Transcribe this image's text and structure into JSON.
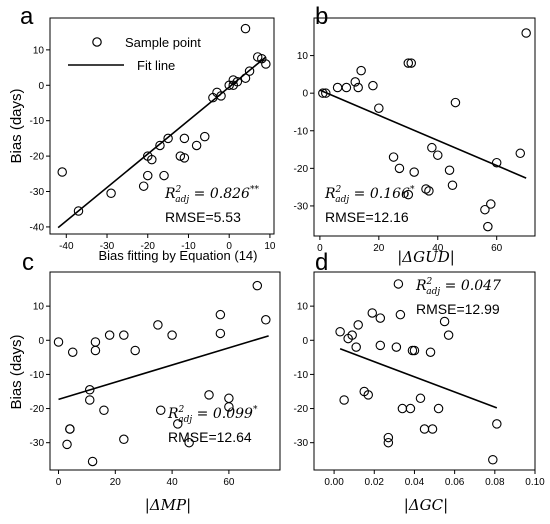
{
  "chart_data": [
    {
      "panel": "a",
      "type": "scatter",
      "xlabel": "Bias fitting by Equation (14)",
      "ylabel": "Bias (days)",
      "xlim": [
        -44,
        11
      ],
      "ylim": [
        -42,
        19
      ],
      "xticks": [
        -40,
        -30,
        -20,
        -10,
        0,
        10
      ],
      "yticks": [
        -40,
        -30,
        -20,
        -10,
        0,
        10
      ],
      "legend": {
        "marker_label": "Sample point",
        "line_label": "Fit line",
        "placement": "top-left"
      },
      "r2_value": "0.826",
      "r2_sig": "**",
      "rmse": "RMSE=5.53",
      "fit": {
        "x1": -42,
        "y1": -40.2,
        "x2": 9,
        "y2": 8
      },
      "x": [
        -41,
        -37,
        -29,
        -21,
        -20,
        -20,
        -19,
        -17,
        -16,
        -15,
        -12,
        -11,
        -11,
        -8,
        -6,
        -4,
        -3,
        -2,
        0,
        1,
        1,
        2,
        4,
        5,
        7,
        8,
        9,
        4
      ],
      "y": [
        -24.5,
        -35.5,
        -30.5,
        -28.5,
        -20,
        -25.5,
        -21,
        -17,
        -25.5,
        -15,
        -20,
        -15,
        -20.5,
        -17,
        -14.5,
        -3.5,
        -2,
        -3,
        0,
        1.5,
        0,
        1,
        2,
        4,
        8,
        7.5,
        6,
        16
      ]
    },
    {
      "panel": "b",
      "type": "scatter",
      "xlabel": "|ΔGUD|",
      "ylabel": "",
      "xlim": [
        -2,
        73
      ],
      "ylim": [
        -38,
        20
      ],
      "xticks": [
        0,
        20,
        40,
        60
      ],
      "yticks": [
        -30,
        -20,
        -10,
        0,
        10
      ],
      "r2_value": "0.166",
      "r2_sig": "*",
      "rmse": "RMSE=12.16",
      "fit": {
        "x1": 0,
        "y1": 0.8,
        "x2": 70,
        "y2": -22.6
      },
      "x": [
        1,
        2,
        6,
        9,
        12,
        13,
        14,
        18,
        20,
        30,
        31,
        32,
        25,
        27,
        30,
        36,
        37,
        38,
        40,
        44,
        45,
        46,
        56,
        57,
        58,
        60,
        68,
        70
      ],
      "y": [
        0,
        0,
        1.5,
        1.5,
        3,
        1.5,
        6,
        2,
        -4,
        8,
        8,
        -21,
        -17,
        -20,
        -27,
        -25.5,
        -26,
        -14.5,
        -16.5,
        -20.5,
        -24.5,
        -2.5,
        -31,
        -35.5,
        -29.5,
        -18.5,
        -16,
        16
      ]
    },
    {
      "panel": "c",
      "type": "scatter",
      "xlabel": "|ΔMP|",
      "ylabel": "Bias (days)",
      "xlim": [
        -3,
        78
      ],
      "ylim": [
        -38,
        20
      ],
      "xticks": [
        0,
        20,
        40,
        60
      ],
      "yticks": [
        -30,
        -20,
        -10,
        0,
        10
      ],
      "r2_value": "0.099",
      "r2_sig": "*",
      "rmse": "RMSE=12.64",
      "fit": {
        "x1": 0,
        "y1": -17.3,
        "x2": 74,
        "y2": 1.3
      },
      "x": [
        0,
        3,
        4,
        4,
        5,
        11,
        11,
        12,
        13,
        13,
        16,
        18,
        23,
        23,
        27,
        35,
        36,
        40,
        42,
        46,
        53,
        57,
        57,
        60,
        60,
        70,
        73
      ],
      "y": [
        -0.5,
        -30.5,
        -26,
        -26,
        -3.5,
        -14.5,
        -17.5,
        -35.5,
        -0.5,
        -3,
        -20.5,
        1.5,
        1.5,
        -29,
        -3,
        4.5,
        -20.5,
        1.5,
        -24.5,
        -30,
        -16,
        7.5,
        2,
        -17,
        -19.5,
        16,
        6
      ]
    },
    {
      "panel": "d",
      "type": "scatter",
      "xlabel": "|ΔGC|",
      "ylabel": "",
      "xlim": [
        -0.01,
        0.1
      ],
      "ylim": [
        -38,
        20
      ],
      "xticks": [
        0.0,
        0.02,
        0.04,
        0.06,
        0.08,
        0.1
      ],
      "xtick_labels": [
        "0.00",
        "0.02",
        "0.04",
        "0.06",
        "0.08",
        "0.10"
      ],
      "yticks": [
        -30,
        -20,
        -10,
        0,
        10
      ],
      "r2_value": "0.047",
      "r2_sig": "",
      "rmse": "RMSE=12.99",
      "fit": {
        "x1": 0.003,
        "y1": -2.5,
        "x2": 0.081,
        "y2": -19.8
      },
      "x": [
        0.003,
        0.005,
        0.007,
        0.009,
        0.011,
        0.012,
        0.015,
        0.017,
        0.019,
        0.023,
        0.023,
        0.027,
        0.027,
        0.031,
        0.032,
        0.033,
        0.034,
        0.038,
        0.039,
        0.04,
        0.043,
        0.045,
        0.048,
        0.049,
        0.052,
        0.055,
        0.057,
        0.079,
        0.081
      ],
      "y": [
        2.5,
        -17.5,
        0.5,
        1.5,
        -2,
        4.5,
        -15,
        -16,
        8,
        -1.5,
        6.5,
        -28.5,
        -30,
        -2,
        16.5,
        7.5,
        -20,
        -20,
        -3,
        -3,
        -17,
        -26,
        -3.5,
        -26,
        -20,
        5.5,
        1.5,
        -35,
        -24.5
      ]
    }
  ]
}
